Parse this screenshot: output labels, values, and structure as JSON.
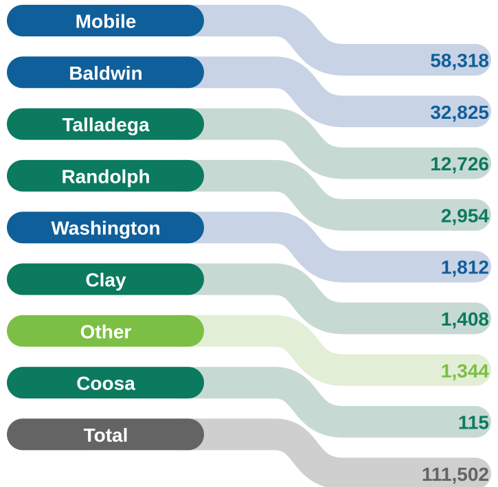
{
  "rows": [
    {
      "label": "Mobile",
      "value": "58,318",
      "color": "#0f5f9a",
      "ribbon": "#c8d3e5"
    },
    {
      "label": "Baldwin",
      "value": "32,825",
      "color": "#0f5f9a",
      "ribbon": "#c8d3e5"
    },
    {
      "label": "Talladega",
      "value": "12,726",
      "color": "#0b7a5f",
      "ribbon": "#c7d9d3"
    },
    {
      "label": "Randolph",
      "value": "2,954",
      "color": "#0b7a5f",
      "ribbon": "#c7d9d3"
    },
    {
      "label": "Washington",
      "value": "1,812",
      "color": "#0f5f9a",
      "ribbon": "#c8d3e5"
    },
    {
      "label": "Clay",
      "value": "1,408",
      "color": "#0b7a5f",
      "ribbon": "#c7d9d3"
    },
    {
      "label": "Other",
      "value": "1,344",
      "color": "#7bbf44",
      "ribbon": "#e2eed5"
    },
    {
      "label": "Coosa",
      "value": "115",
      "color": "#0b7a5f",
      "ribbon": "#c7d9d3"
    },
    {
      "label": "Total",
      "value": "111,502",
      "color": "#646464",
      "ribbon": "#cfcfcf"
    }
  ]
}
